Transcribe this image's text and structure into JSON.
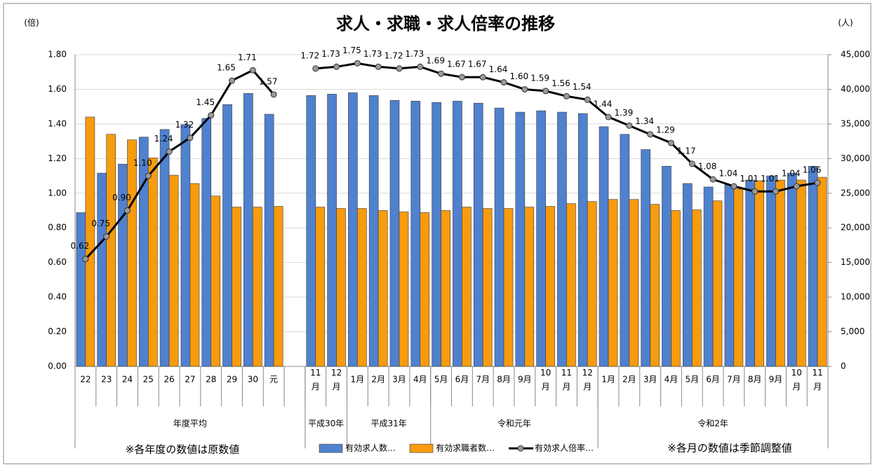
{
  "chart_data": {
    "type": "bar",
    "title": "求人・求職・求人倍率の推移",
    "y_unit": "(倍)",
    "y2_unit": "(人)",
    "categories": [
      "22",
      "23",
      "24",
      "25",
      "26",
      "27",
      "28",
      "29",
      "30",
      "元",
      null,
      "11月",
      "12月",
      "1月",
      "2月",
      "3月",
      "4月",
      "5月",
      "6月",
      "7月",
      "8月",
      "9月",
      "10月",
      "11月",
      "12月",
      "1月",
      "2月",
      "3月",
      "4月",
      "5月",
      "6月",
      "7月",
      "8月",
      "9月",
      "10月",
      "11月"
    ],
    "groups": [
      {
        "label": "年度平均",
        "span": 11
      },
      {
        "label": "平成30年",
        "span": 2
      },
      {
        "label": "平成31年",
        "span": 4
      },
      {
        "label": "令和元年",
        "span": 8
      },
      {
        "label": "令和2年",
        "span": 11
      }
    ],
    "series": [
      {
        "name": "有効求人数…",
        "type": "bar",
        "axis": "y2",
        "color": "#4f81cf",
        "values": [
          22200,
          27900,
          29200,
          33100,
          34200,
          34900,
          35800,
          37800,
          39400,
          36400,
          null,
          39100,
          39300,
          39500,
          39100,
          38400,
          38300,
          38100,
          38300,
          38000,
          37300,
          36700,
          36900,
          36700,
          36500,
          34600,
          33500,
          31300,
          28900,
          26400,
          25900,
          26200,
          26900,
          27500,
          27900,
          28900
        ]
      },
      {
        "name": "有効求職者数…",
        "type": "bar",
        "axis": "y2",
        "color": "#f79b0f",
        "values": [
          36000,
          33500,
          32700,
          30100,
          27600,
          26400,
          24600,
          23000,
          23000,
          23100,
          null,
          23000,
          22800,
          22800,
          22500,
          22300,
          22200,
          22500,
          23000,
          22800,
          22800,
          23000,
          23100,
          23500,
          23800,
          24100,
          24100,
          23400,
          22500,
          22600,
          23900,
          25600,
          26800,
          26900,
          26900,
          27300
        ]
      },
      {
        "name": "有効求人倍率…",
        "type": "line",
        "color": "#000000",
        "values": [
          0.62,
          0.75,
          0.9,
          1.1,
          1.24,
          1.32,
          1.45,
          1.65,
          1.71,
          1.57,
          null,
          1.72,
          1.73,
          1.75,
          1.73,
          1.72,
          1.73,
          1.69,
          1.67,
          1.67,
          1.64,
          1.6,
          1.59,
          1.56,
          1.54,
          1.44,
          1.39,
          1.34,
          1.29,
          1.17,
          1.08,
          1.04,
          1.01,
          1.01,
          1.04,
          1.06
        ],
        "value_labels": [
          "0.62",
          "0.75",
          "0.90",
          "1.10",
          "1.24",
          "1.32",
          "1.45",
          "1.65",
          "1.71",
          "1.57",
          null,
          "1.72",
          "1.73",
          "1.75",
          "1.73",
          "1.72",
          "1.73",
          "1.69",
          "1.67",
          "1.67",
          "1.64",
          "1.60",
          "1.59",
          "1.56",
          "1.54",
          "1.44",
          "1.39",
          "1.34",
          "1.29",
          "1.17",
          "1.08",
          "1.04",
          "1.01",
          "1.01",
          "1.04",
          "1.06"
        ]
      }
    ],
    "ylim": [
      0,
      1.8
    ],
    "yticks": [
      {
        "value": 0,
        "label": "0.00"
      },
      {
        "value": 0.2,
        "label": "0.20"
      },
      {
        "value": 0.4,
        "label": "0.40"
      },
      {
        "value": 0.6,
        "label": "0.60"
      },
      {
        "value": 0.8,
        "label": "0.80"
      },
      {
        "value": 1,
        "label": "1.00"
      },
      {
        "value": 1.2,
        "label": "1.20"
      },
      {
        "value": 1.4,
        "label": "1.40"
      },
      {
        "value": 1.6,
        "label": "1.60"
      },
      {
        "value": 1.8,
        "label": "1.80"
      }
    ],
    "y2lim": [
      0,
      45000
    ],
    "y2ticks": [
      0,
      {
        "value": 5000,
        "label": "5,000"
      },
      {
        "value": 10000,
        "label": "10,000"
      },
      {
        "value": 15000,
        "label": "15,000"
      },
      {
        "value": 20000,
        "label": "20,000"
      },
      {
        "value": 25000,
        "label": "25,000"
      },
      {
        "value": 30000,
        "label": "30,000"
      },
      {
        "value": 35000,
        "label": "35,000"
      },
      {
        "value": 40000,
        "label": "40,000"
      },
      {
        "value": 45000,
        "label": "45,000"
      }
    ],
    "grid": true,
    "notes": [
      "※各年度の数値は原数値",
      "※各月の数値は季節調整値"
    ]
  }
}
